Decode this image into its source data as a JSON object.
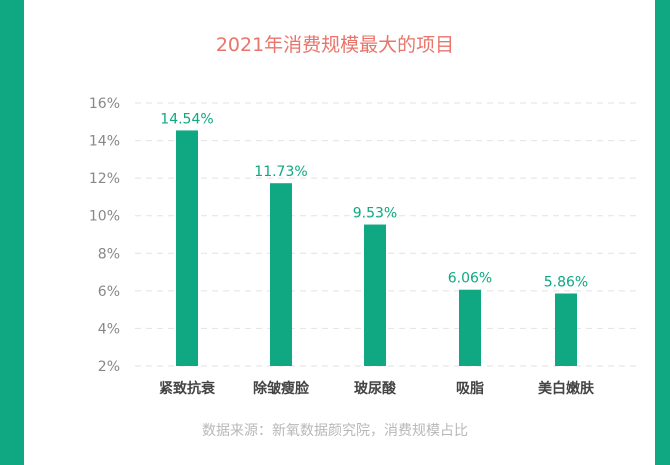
{
  "chart_data": {
    "type": "bar",
    "title": "2021年消费规模最大的项目",
    "categories": [
      "紧致抗衰",
      "除皱瘦脸",
      "玻尿酸",
      "吸脂",
      "美白嫩肤"
    ],
    "values": [
      14.54,
      11.73,
      9.53,
      6.06,
      5.86
    ],
    "data_labels": [
      "14.54%",
      "11.73%",
      "9.53%",
      "6.06%",
      "5.86%"
    ],
    "yticks": [
      "2%",
      "4%",
      "6%",
      "8%",
      "10%",
      "12%",
      "14%",
      "16%"
    ],
    "ylim": [
      2,
      16
    ],
    "grid": true,
    "legend": "none",
    "xlabel": "",
    "ylabel": "",
    "source": "数据来源：新氧数据颜究院，消费规模占比",
    "colors": {
      "bar": "#0fa882",
      "title": "#e8756b",
      "frame": "#0fa882"
    }
  }
}
